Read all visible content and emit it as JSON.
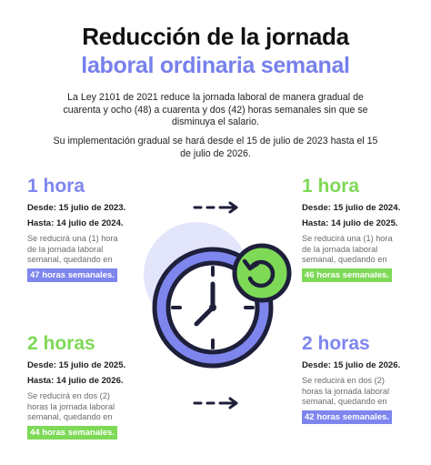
{
  "header": {
    "title_line1": "Reducción de la jornada",
    "title_line2": "laboral ordinaria semanal"
  },
  "intro": {
    "paragraph1": "La Ley 2101 de 2021 reduce la jornada laboral de manera gradual de cuarenta y ocho (48) a cuarenta y dos (42) horas semanales sin que se disminuya el salario.",
    "paragraph2": "Su implementación gradual se hará desde el 15 de julio de 2023 hasta el 15 de julio de 2026."
  },
  "steps": [
    {
      "hours": "1 hora",
      "from": "Desde: 15 julio de 2023.",
      "until": "Hasta: 14 julio de 2024.",
      "description": "Se reducirá una (1) hora de la jornada laboral semanal, quedando en",
      "result": "47 horas semanales."
    },
    {
      "hours": "1 hora",
      "from": "Desde: 15 julio de 2024.",
      "until": "Hasta: 14 julio de 2025.",
      "description": "Se reducirá una (1) hora de la jornada laboral semanal, quedando en",
      "result": "46 horas semanales."
    },
    {
      "hours": "2 horas",
      "from": "Desde: 15 julio de 2025.",
      "until": "Hasta: 14 julio de 2026.",
      "description": "Se reducirá en dos (2) horas la jornada laboral semanal, quedando en",
      "result": "44 horas semanales."
    },
    {
      "hours": "2 horas",
      "from": "Desde: 15 julio de 2026.",
      "description": "Se reducirá en dos (2) horas la jornada laboral semanal, quedando en",
      "result": "42 horas semanales."
    }
  ],
  "colors": {
    "purple": "#7e86ee",
    "green": "#7ed957",
    "dark": "#1e1f3a"
  },
  "icons": [
    "dashed-arrow-icon",
    "clock-icon",
    "refresh-icon"
  ]
}
